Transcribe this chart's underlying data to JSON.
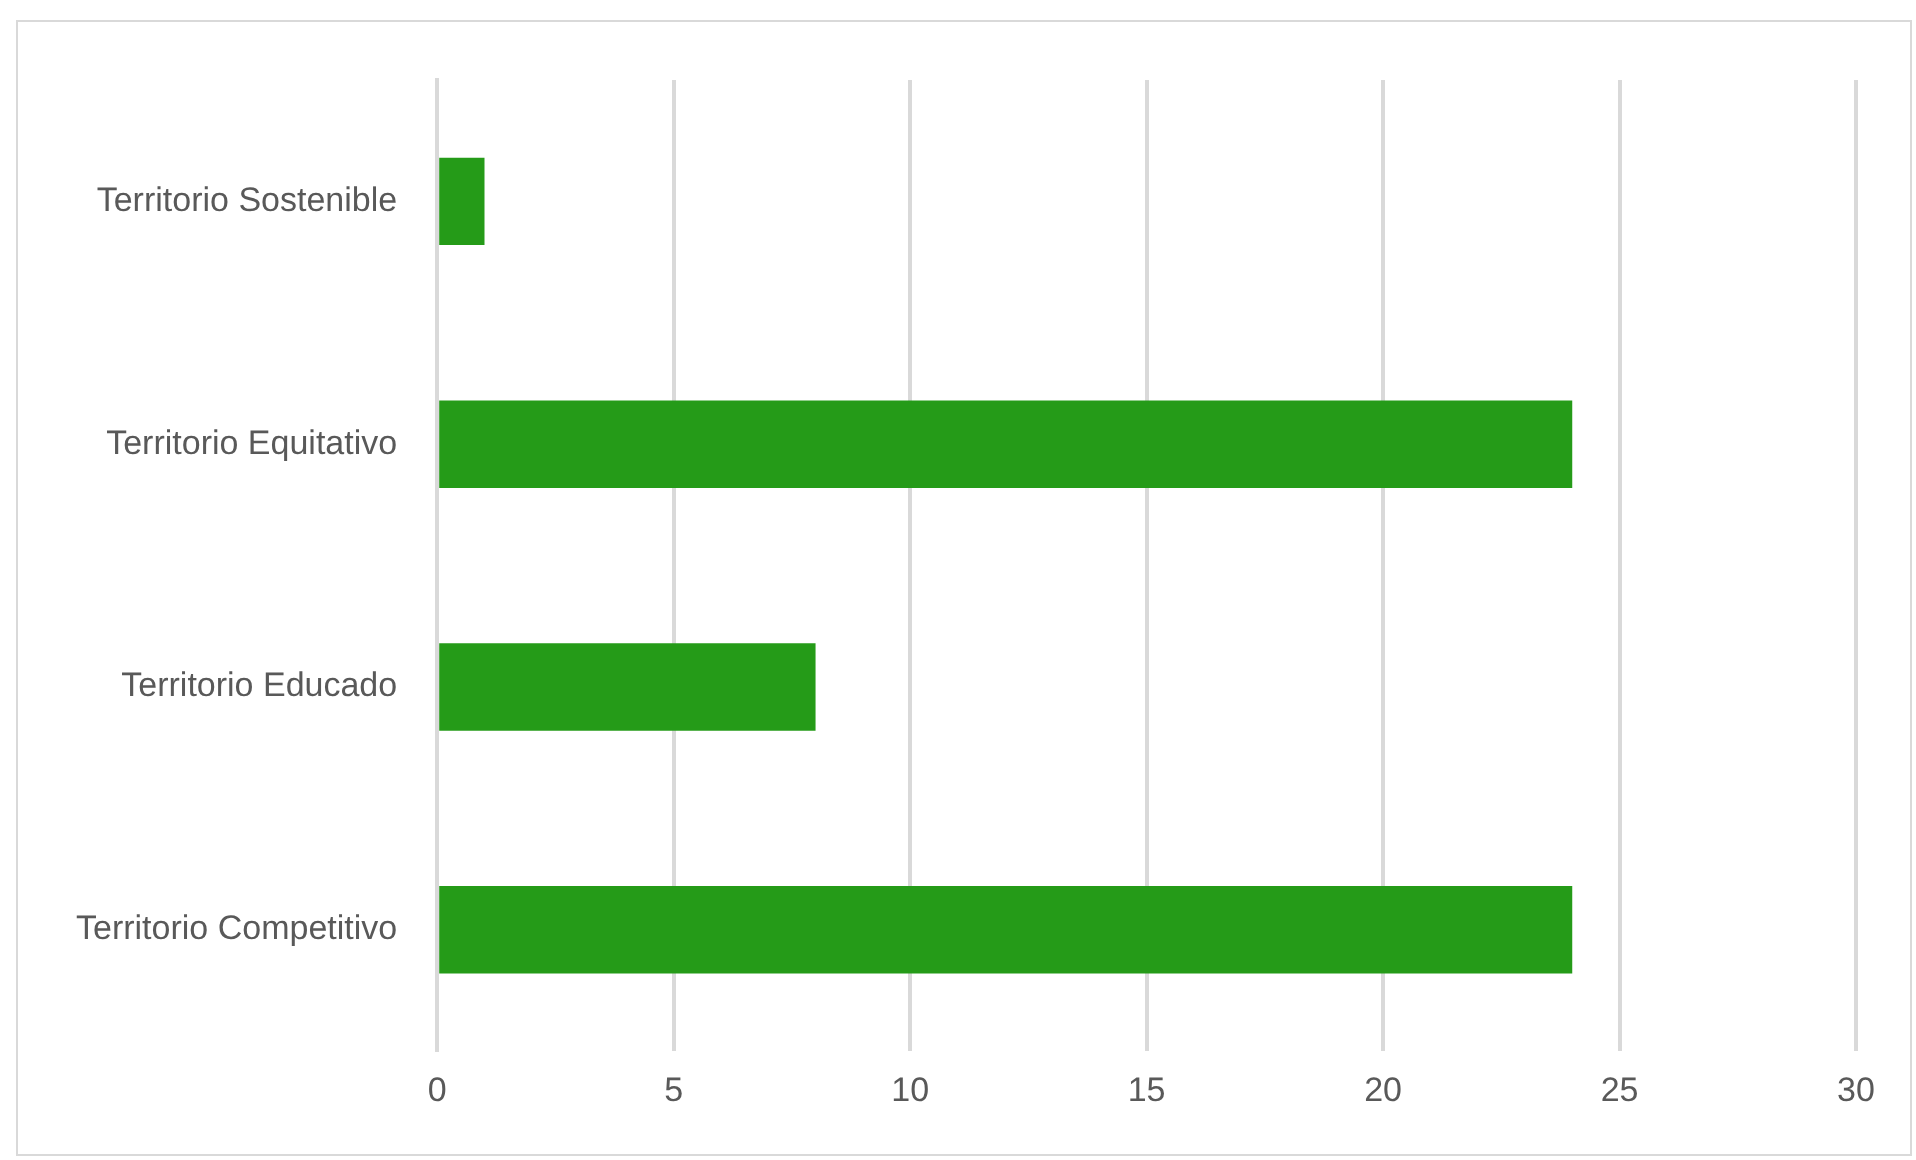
{
  "chart_data": {
    "type": "bar",
    "orientation": "horizontal",
    "categories": [
      "Territorio Sostenible",
      "Territorio Equitativo",
      "Territorio Educado",
      "Territorio Competitivo"
    ],
    "values": [
      1,
      24,
      8,
      24
    ],
    "color": "#259b18",
    "xlim": [
      0,
      30
    ],
    "xticks": [
      0,
      5,
      10,
      15,
      20,
      25,
      30
    ],
    "grid": "x"
  }
}
